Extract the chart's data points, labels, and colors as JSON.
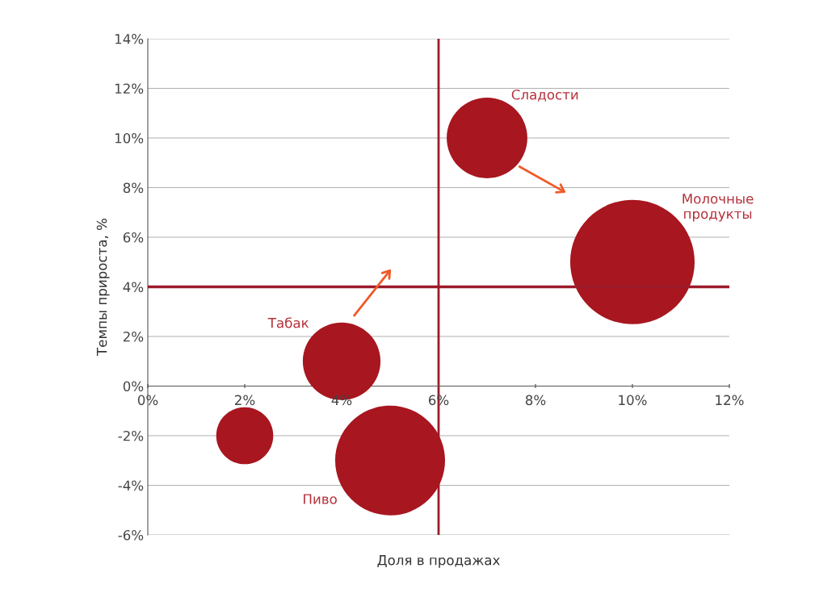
{
  "chart_data": {
    "type": "bubble",
    "xlabel": "Доля в продажах",
    "ylabel": "Темпы прироста, %",
    "x": [
      2,
      4,
      5,
      7,
      10
    ],
    "values": [
      -2,
      1,
      -3,
      10,
      5
    ],
    "sizes": [
      0.21,
      0.39,
      0.78,
      0.42,
      1
    ],
    "color": "#a8161f",
    "xlim": [
      0,
      12
    ],
    "ylim": [
      -6,
      14
    ],
    "xticks": [
      {
        "value": 0,
        "label": "0%"
      },
      {
        "value": 2,
        "label": "2%"
      },
      {
        "value": 4,
        "label": "4%"
      },
      {
        "value": 6,
        "label": "6%"
      },
      {
        "value": 8,
        "label": "8%"
      },
      {
        "value": 10,
        "label": "10%"
      },
      {
        "value": 12,
        "label": "12%"
      }
    ],
    "yticks": [
      {
        "value": -6,
        "label": "-6%"
      },
      {
        "value": -4,
        "label": "-4%"
      },
      {
        "value": -2,
        "label": "-2%"
      },
      {
        "value": 0,
        "label": "0%"
      },
      {
        "value": 2,
        "label": "2%"
      },
      {
        "value": 4,
        "label": "4%"
      },
      {
        "value": 6,
        "label": "6%"
      },
      {
        "value": 8,
        "label": "8%"
      },
      {
        "value": 10,
        "label": "10%"
      },
      {
        "value": 12,
        "label": "12%"
      },
      {
        "value": 14,
        "label": "14%"
      }
    ],
    "grid": "y",
    "ref_lines": [
      {
        "axis": "x",
        "value": 6,
        "color": "#9b1b2a"
      },
      {
        "axis": "y",
        "value": 4,
        "color": "#9b1b2a"
      }
    ],
    "annotations": [
      "Табак",
      "Пиво",
      "Сладости",
      "Молочные\nпродукты"
    ]
  }
}
